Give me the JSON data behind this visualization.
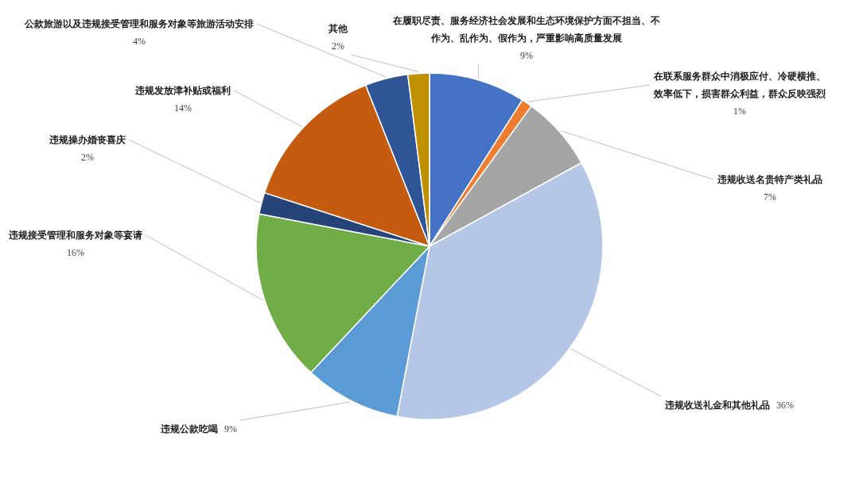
{
  "chart_data": {
    "type": "pie",
    "categories": [
      "在履职尽责、服务经济社会发展和生态环境保护方面不担当、不作为、乱作为、假作为，严重影响高质量发展",
      "在联系服务群众中消极应付、冷硬横推、效率低下，损害群众利益，群众反映强烈",
      "违规收送名贵特产类礼品",
      "违规收送礼金和其他礼品",
      "违规公款吃喝",
      "违规接受管理和服务对象等宴请",
      "违规操办婚丧喜庆",
      "违规发放津补贴或福利",
      "公款旅游以及违规接受管理和服务对象等旅游活动安排",
      "其他"
    ],
    "values": [
      9,
      1,
      7,
      36,
      9,
      16,
      2,
      14,
      4,
      2
    ],
    "colors": [
      "#4472c4",
      "#ed7d31",
      "#a5a5a5",
      "#b4c7e7",
      "#5b9bd5",
      "#70ad47",
      "#264478",
      "#c55a11",
      "#2f5597",
      "#bf9000"
    ],
    "value_labels": [
      "9%",
      "1%",
      "7%",
      "36%",
      "9%",
      "16%",
      "2%",
      "14%",
      "4%",
      "2%"
    ]
  }
}
